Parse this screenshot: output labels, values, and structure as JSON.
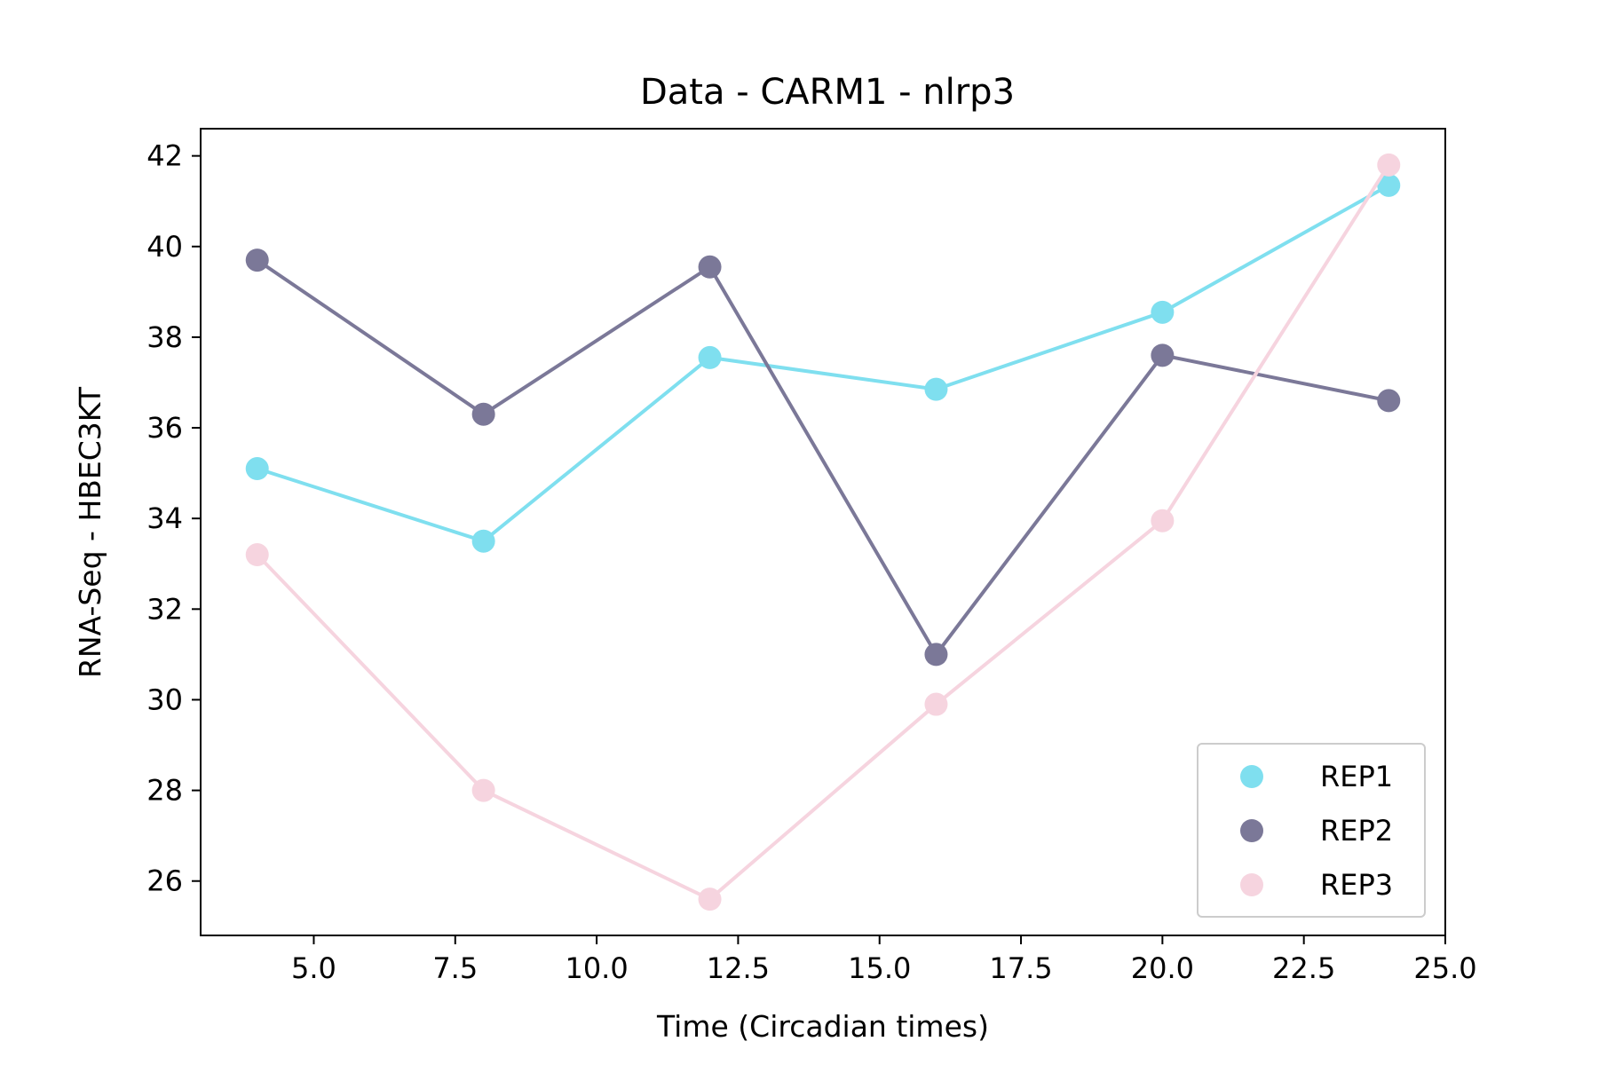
{
  "chart_data": {
    "type": "line",
    "title": "Data - CARM1 - nlrp3",
    "xlabel": "Time (Circadian times)",
    "ylabel": "RNA-Seq - HBEC3KT",
    "xlim": [
      3.0,
      25.0
    ],
    "ylim": [
      24.8,
      42.6
    ],
    "x_ticks": [
      5.0,
      7.5,
      10.0,
      12.5,
      15.0,
      17.5,
      20.0,
      22.5,
      25.0
    ],
    "x_tick_labels": [
      "5.0",
      "7.5",
      "10.0",
      "12.5",
      "15.0",
      "17.5",
      "20.0",
      "22.5",
      "25.0"
    ],
    "y_ticks": [
      26,
      28,
      30,
      32,
      34,
      36,
      38,
      40,
      42
    ],
    "y_tick_labels": [
      "26",
      "28",
      "30",
      "32",
      "34",
      "36",
      "38",
      "40",
      "42"
    ],
    "grid": false,
    "legend_position": "bottom-right",
    "x": [
      4,
      8,
      12,
      16,
      20,
      24
    ],
    "series": [
      {
        "name": "REP1",
        "color": "#7fdfef",
        "values": [
          35.1,
          33.5,
          37.55,
          36.85,
          38.55,
          41.35
        ]
      },
      {
        "name": "REP2",
        "color": "#7b7898",
        "values": [
          39.7,
          36.3,
          39.55,
          31.0,
          37.6,
          36.6
        ]
      },
      {
        "name": "REP3",
        "color": "#f6d4df",
        "values": [
          33.2,
          28.0,
          25.6,
          29.9,
          33.95,
          41.8
        ]
      }
    ]
  }
}
